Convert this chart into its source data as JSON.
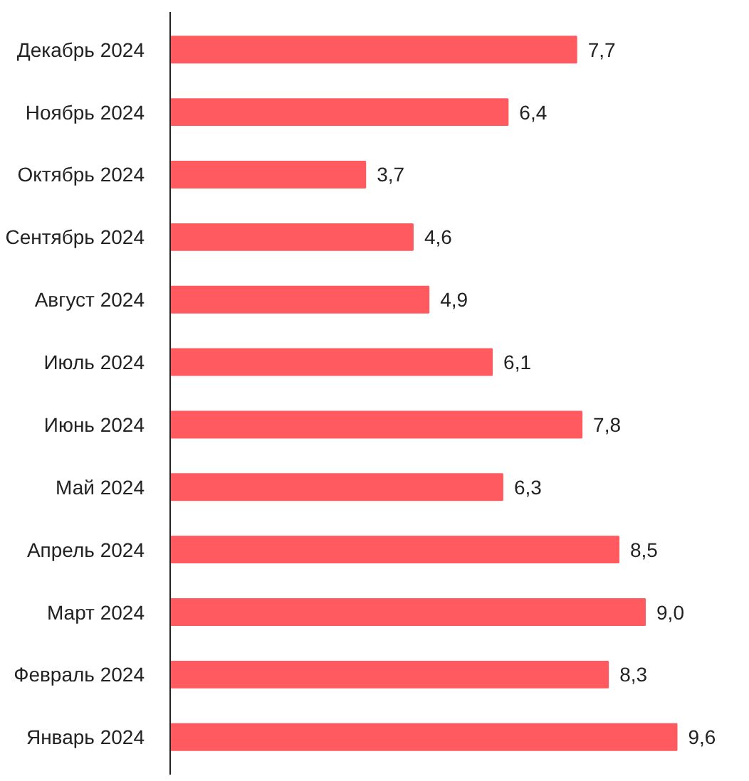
{
  "chart_data": {
    "type": "bar",
    "orientation": "horizontal",
    "categories": [
      "Декабрь 2024",
      "Ноябрь 2024",
      "Октябрь 2024",
      "Сентябрь 2024",
      "Август 2024",
      "Июль 2024",
      "Июнь 2024",
      "Май 2024",
      "Апрель 2024",
      "Март 2024",
      "Февраль 2024",
      "Январь 2024"
    ],
    "values": [
      7.7,
      6.4,
      3.7,
      4.6,
      4.9,
      6.1,
      7.8,
      6.3,
      8.5,
      9.0,
      8.3,
      9.6
    ],
    "value_labels": [
      "7,7",
      "6,4",
      "3,7",
      "4,6",
      "4,9",
      "6,1",
      "7,8",
      "6,3",
      "8,5",
      "9,0",
      "8,3",
      "9,6"
    ],
    "color": "#ff5a5f"
  }
}
